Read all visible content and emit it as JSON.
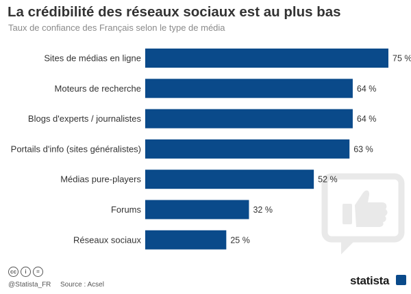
{
  "header": {
    "title": "La crédibilité des réseaux sociaux est au plus bas",
    "subtitle": "Taux de confiance des Français selon le type de média"
  },
  "chart_data": {
    "type": "bar",
    "orientation": "horizontal",
    "title": "La crédibilité des réseaux sociaux est au plus bas",
    "subtitle": "Taux de confiance des Français selon le type de média",
    "categories": [
      "Sites de médias en ligne",
      "Moteurs de recherche",
      "Blogs d'experts / journalistes",
      "Portails d'info (sites généralistes)",
      "Médias pure-players",
      "Forums",
      "Réseaux sociaux"
    ],
    "values": [
      75,
      64,
      64,
      63,
      52,
      32,
      25
    ],
    "value_labels": [
      "75 %",
      "64 %",
      "64 %",
      "63 %",
      "52 %",
      "32 %",
      "25 %"
    ],
    "unit": "%",
    "xlim": [
      0,
      100
    ],
    "xlabel": "",
    "ylabel": "",
    "grid": false,
    "bar_color": "#0a4a8a"
  },
  "footer": {
    "license_icons": [
      "cc-icon",
      "by-icon",
      "nd-icon"
    ],
    "license_glyphs": [
      "cc",
      "i",
      "="
    ],
    "handle": "@Statista_FR",
    "source": "Source : Acsel",
    "brand": "statista"
  },
  "colors": {
    "bar": "#0a4a8a",
    "title": "#333333",
    "subtitle": "#8a8a8a"
  }
}
